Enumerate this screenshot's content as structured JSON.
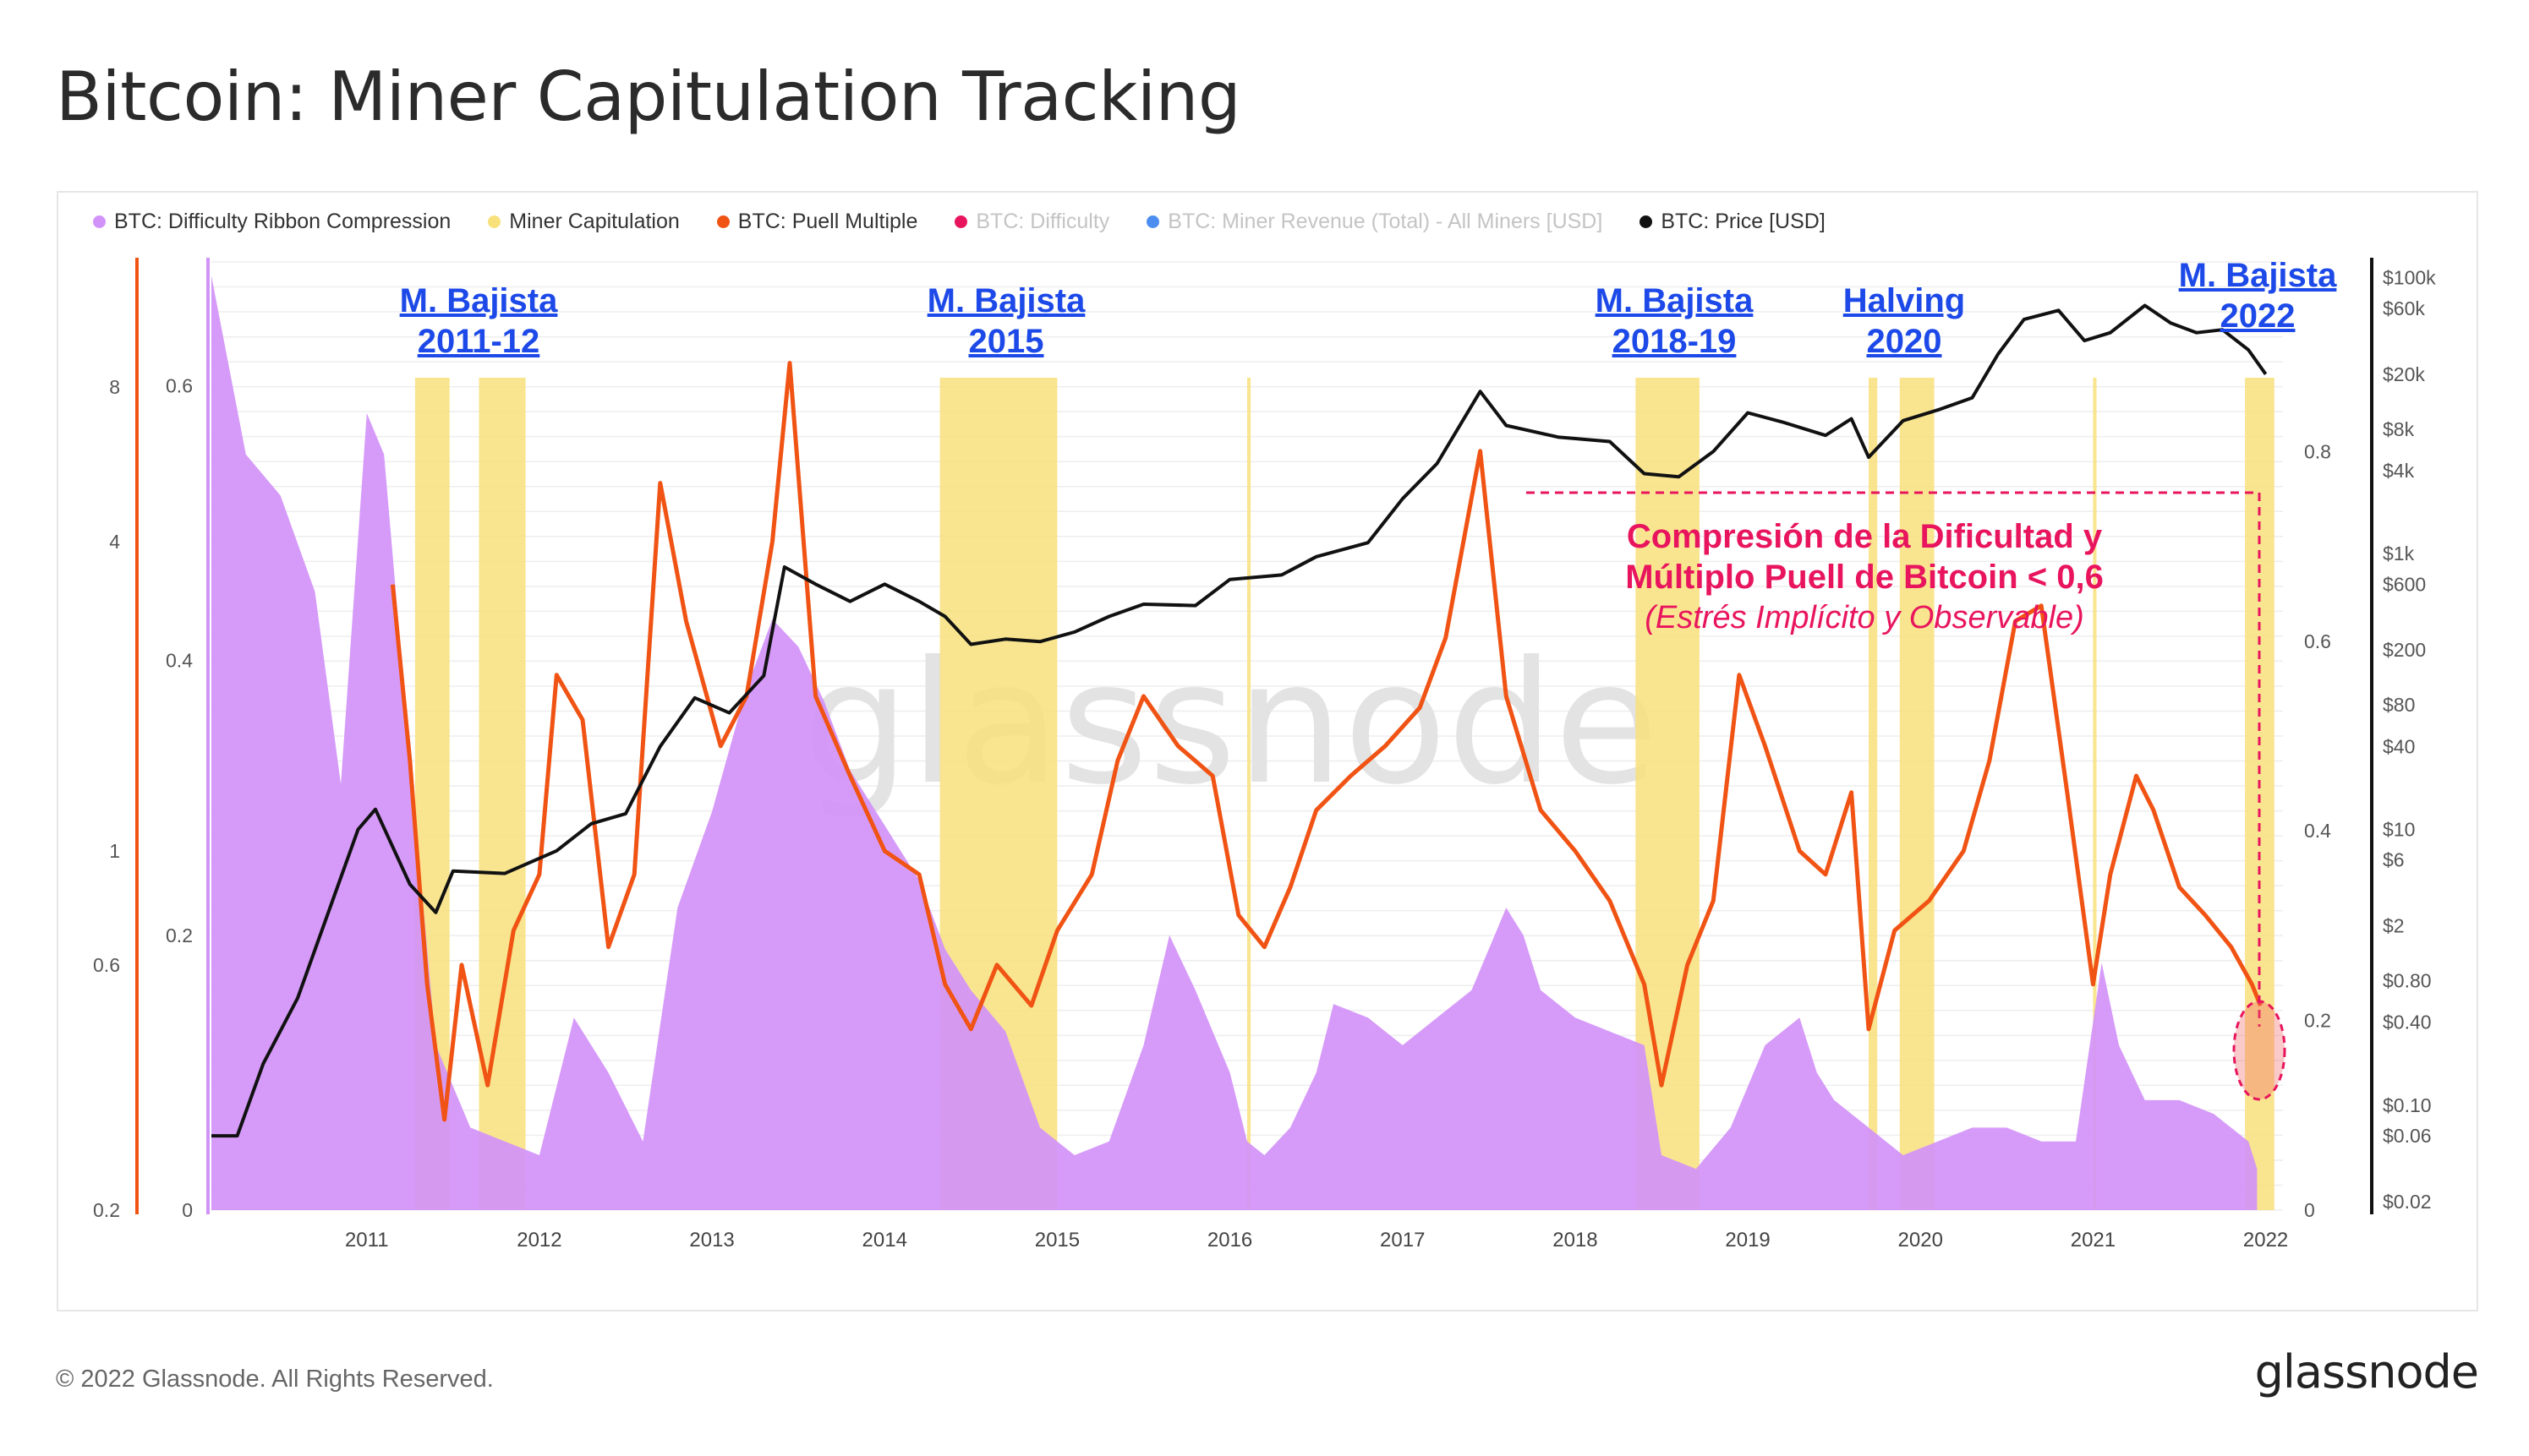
{
  "page": {
    "title": "Bitcoin: Miner Capitulation Tracking"
  },
  "legend": [
    {
      "label": "BTC: Difficulty Ribbon Compression",
      "color": "#d293f9",
      "muted": false
    },
    {
      "label": "Miner Capitulation",
      "color": "#f8e17b",
      "muted": false
    },
    {
      "label": "BTC: Puell Multiple",
      "color": "#f05313",
      "muted": false
    },
    {
      "label": "BTC: Difficulty",
      "color": "#e8155e",
      "muted": true
    },
    {
      "label": "BTC: Miner Revenue (Total) - All Miners [USD]",
      "color": "#4c8ef0",
      "muted": true
    },
    {
      "label": "BTC: Price [USD]",
      "color": "#111111",
      "muted": false
    }
  ],
  "footer": {
    "copyright": "© 2022 Glassnode. All Rights Reserved.",
    "brand": "glassnode"
  },
  "chart_data": {
    "type": "line",
    "title": "Bitcoin: Miner Capitulation Tracking",
    "watermark": "glassnode",
    "x_axis": {
      "ticks": [
        "2011",
        "2012",
        "2013",
        "2014",
        "2015",
        "2016",
        "2017",
        "2018",
        "2019",
        "2020",
        "2021",
        "2022"
      ],
      "range": [
        2010.6,
        2022.6
      ]
    },
    "axes": {
      "puell_multiple_log": {
        "ticks": [
          "0.2",
          "0.6",
          "1",
          "4",
          "8"
        ],
        "values": [
          0.2,
          0.6,
          1,
          4,
          8
        ]
      },
      "difficulty_ribbon_compression": {
        "ticks": [
          "0",
          "0.2",
          "0.4",
          "0.6"
        ],
        "range": [
          0,
          0.69
        ]
      },
      "right_inner": {
        "ticks": [
          "0",
          "0.2",
          "0.4",
          "0.6",
          "0.8"
        ],
        "range": [
          0,
          1.0
        ]
      },
      "price_usd_log": {
        "ticks": [
          "$0.02",
          "$0.06",
          "$0.10",
          "$0.40",
          "$0.80",
          "$2",
          "$6",
          "$10",
          "$40",
          "$80",
          "$200",
          "$600",
          "$1k",
          "$4k",
          "$8k",
          "$20k",
          "$60k",
          "$100k"
        ],
        "values": [
          0.02,
          0.06,
          0.1,
          0.4,
          0.8,
          2,
          6,
          10,
          40,
          80,
          200,
          600,
          1000,
          4000,
          8000,
          20000,
          60000,
          100000
        ]
      }
    },
    "series": [
      {
        "name": "BTC: Difficulty Ribbon Compression",
        "type": "area",
        "color": "#d293f9",
        "points": [
          [
            2010.6,
            0.68
          ],
          [
            2010.8,
            0.55
          ],
          [
            2011.0,
            0.52
          ],
          [
            2011.2,
            0.45
          ],
          [
            2011.35,
            0.31
          ],
          [
            2011.5,
            0.58
          ],
          [
            2011.6,
            0.55
          ],
          [
            2011.75,
            0.33
          ],
          [
            2011.9,
            0.12
          ],
          [
            2012.1,
            0.06
          ],
          [
            2012.3,
            0.05
          ],
          [
            2012.5,
            0.04
          ],
          [
            2012.7,
            0.14
          ],
          [
            2012.9,
            0.1
          ],
          [
            2013.1,
            0.05
          ],
          [
            2013.3,
            0.22
          ],
          [
            2013.5,
            0.29
          ],
          [
            2013.7,
            0.38
          ],
          [
            2013.85,
            0.43
          ],
          [
            2014.0,
            0.41
          ],
          [
            2014.15,
            0.37
          ],
          [
            2014.3,
            0.32
          ],
          [
            2014.5,
            0.28
          ],
          [
            2014.7,
            0.24
          ],
          [
            2014.85,
            0.19
          ],
          [
            2015.0,
            0.16
          ],
          [
            2015.2,
            0.13
          ],
          [
            2015.4,
            0.06
          ],
          [
            2015.6,
            0.04
          ],
          [
            2015.8,
            0.05
          ],
          [
            2016.0,
            0.12
          ],
          [
            2016.15,
            0.2
          ],
          [
            2016.3,
            0.16
          ],
          [
            2016.5,
            0.1
          ],
          [
            2016.6,
            0.05
          ],
          [
            2016.7,
            0.04
          ],
          [
            2016.85,
            0.06
          ],
          [
            2017.0,
            0.1
          ],
          [
            2017.1,
            0.15
          ],
          [
            2017.3,
            0.14
          ],
          [
            2017.5,
            0.12
          ],
          [
            2017.7,
            0.14
          ],
          [
            2017.9,
            0.16
          ],
          [
            2018.1,
            0.22
          ],
          [
            2018.2,
            0.2
          ],
          [
            2018.3,
            0.16
          ],
          [
            2018.5,
            0.14
          ],
          [
            2018.7,
            0.13
          ],
          [
            2018.9,
            0.12
          ],
          [
            2019.0,
            0.04
          ],
          [
            2019.2,
            0.03
          ],
          [
            2019.4,
            0.06
          ],
          [
            2019.6,
            0.12
          ],
          [
            2019.8,
            0.14
          ],
          [
            2019.9,
            0.1
          ],
          [
            2020.0,
            0.08
          ],
          [
            2020.2,
            0.06
          ],
          [
            2020.4,
            0.04
          ],
          [
            2020.6,
            0.05
          ],
          [
            2020.8,
            0.06
          ],
          [
            2021.0,
            0.06
          ],
          [
            2021.2,
            0.05
          ],
          [
            2021.4,
            0.05
          ],
          [
            2021.55,
            0.18
          ],
          [
            2021.65,
            0.12
          ],
          [
            2021.8,
            0.08
          ],
          [
            2022.0,
            0.08
          ],
          [
            2022.2,
            0.07
          ],
          [
            2022.4,
            0.05
          ],
          [
            2022.45,
            0.03
          ]
        ]
      },
      {
        "name": "BTC: Puell Multiple",
        "type": "line",
        "color": "#f05313",
        "points": [
          [
            2011.65,
            3.3
          ],
          [
            2011.75,
            1.5
          ],
          [
            2011.85,
            0.55
          ],
          [
            2011.95,
            0.3
          ],
          [
            2012.05,
            0.6
          ],
          [
            2012.2,
            0.35
          ],
          [
            2012.35,
            0.7
          ],
          [
            2012.5,
            0.9
          ],
          [
            2012.6,
            2.2
          ],
          [
            2012.75,
            1.8
          ],
          [
            2012.9,
            0.65
          ],
          [
            2013.05,
            0.9
          ],
          [
            2013.2,
            5.2
          ],
          [
            2013.35,
            2.8
          ],
          [
            2013.55,
            1.6
          ],
          [
            2013.7,
            2.0
          ],
          [
            2013.85,
            4.0
          ],
          [
            2013.95,
            8.9
          ],
          [
            2014.1,
            2.0
          ],
          [
            2014.3,
            1.4
          ],
          [
            2014.5,
            1.0
          ],
          [
            2014.7,
            0.9
          ],
          [
            2014.85,
            0.55
          ],
          [
            2015.0,
            0.45
          ],
          [
            2015.15,
            0.6
          ],
          [
            2015.35,
            0.5
          ],
          [
            2015.5,
            0.7
          ],
          [
            2015.7,
            0.9
          ],
          [
            2015.85,
            1.5
          ],
          [
            2016.0,
            2.0
          ],
          [
            2016.2,
            1.6
          ],
          [
            2016.4,
            1.4
          ],
          [
            2016.55,
            0.75
          ],
          [
            2016.7,
            0.65
          ],
          [
            2016.85,
            0.85
          ],
          [
            2017.0,
            1.2
          ],
          [
            2017.2,
            1.4
          ],
          [
            2017.4,
            1.6
          ],
          [
            2017.6,
            1.9
          ],
          [
            2017.75,
            2.6
          ],
          [
            2017.95,
            6.0
          ],
          [
            2018.1,
            2.0
          ],
          [
            2018.3,
            1.2
          ],
          [
            2018.5,
            1.0
          ],
          [
            2018.7,
            0.8
          ],
          [
            2018.9,
            0.55
          ],
          [
            2019.0,
            0.35
          ],
          [
            2019.15,
            0.6
          ],
          [
            2019.3,
            0.8
          ],
          [
            2019.45,
            2.2
          ],
          [
            2019.6,
            1.6
          ],
          [
            2019.8,
            1.0
          ],
          [
            2019.95,
            0.9
          ],
          [
            2020.1,
            1.3
          ],
          [
            2020.2,
            0.45
          ],
          [
            2020.35,
            0.7
          ],
          [
            2020.55,
            0.8
          ],
          [
            2020.75,
            1.0
          ],
          [
            2020.9,
            1.5
          ],
          [
            2021.05,
            2.8
          ],
          [
            2021.2,
            3.0
          ],
          [
            2021.35,
            1.3
          ],
          [
            2021.5,
            0.55
          ],
          [
            2021.6,
            0.9
          ],
          [
            2021.75,
            1.4
          ],
          [
            2021.85,
            1.2
          ],
          [
            2022.0,
            0.85
          ],
          [
            2022.15,
            0.75
          ],
          [
            2022.3,
            0.65
          ],
          [
            2022.42,
            0.55
          ],
          [
            2022.47,
            0.5
          ]
        ]
      },
      {
        "name": "BTC: Price [USD]",
        "type": "line",
        "color": "#111111",
        "points": [
          [
            2010.6,
            0.06
          ],
          [
            2010.75,
            0.06
          ],
          [
            2010.9,
            0.2
          ],
          [
            2011.1,
            0.6
          ],
          [
            2011.3,
            3.0
          ],
          [
            2011.45,
            10
          ],
          [
            2011.55,
            14
          ],
          [
            2011.75,
            4
          ],
          [
            2011.9,
            2.5
          ],
          [
            2012.0,
            5
          ],
          [
            2012.3,
            4.8
          ],
          [
            2012.6,
            7
          ],
          [
            2012.8,
            11
          ],
          [
            2013.0,
            13
          ],
          [
            2013.2,
            40
          ],
          [
            2013.4,
            90
          ],
          [
            2013.6,
            70
          ],
          [
            2013.8,
            130
          ],
          [
            2013.92,
            800
          ],
          [
            2014.1,
            600
          ],
          [
            2014.3,
            450
          ],
          [
            2014.5,
            600
          ],
          [
            2014.7,
            450
          ],
          [
            2014.85,
            350
          ],
          [
            2015.0,
            220
          ],
          [
            2015.2,
            240
          ],
          [
            2015.4,
            230
          ],
          [
            2015.6,
            270
          ],
          [
            2015.8,
            350
          ],
          [
            2016.0,
            430
          ],
          [
            2016.3,
            420
          ],
          [
            2016.5,
            650
          ],
          [
            2016.8,
            700
          ],
          [
            2017.0,
            950
          ],
          [
            2017.3,
            1200
          ],
          [
            2017.5,
            2500
          ],
          [
            2017.7,
            4500
          ],
          [
            2017.95,
            15000
          ],
          [
            2018.1,
            8500
          ],
          [
            2018.4,
            7000
          ],
          [
            2018.7,
            6500
          ],
          [
            2018.9,
            3800
          ],
          [
            2019.1,
            3600
          ],
          [
            2019.3,
            5500
          ],
          [
            2019.5,
            10500
          ],
          [
            2019.7,
            9000
          ],
          [
            2019.95,
            7200
          ],
          [
            2020.1,
            9500
          ],
          [
            2020.2,
            5000
          ],
          [
            2020.4,
            9200
          ],
          [
            2020.6,
            11000
          ],
          [
            2020.8,
            13500
          ],
          [
            2020.95,
            28000
          ],
          [
            2021.1,
            50000
          ],
          [
            2021.3,
            58000
          ],
          [
            2021.45,
            35000
          ],
          [
            2021.6,
            40000
          ],
          [
            2021.8,
            63000
          ],
          [
            2021.95,
            47000
          ],
          [
            2022.1,
            40000
          ],
          [
            2022.25,
            42000
          ],
          [
            2022.4,
            30000
          ],
          [
            2022.5,
            20000
          ]
        ]
      }
    ],
    "miner_capitulation_bands": [
      [
        2011.78,
        2011.98
      ],
      [
        2012.15,
        2012.42
      ],
      [
        2014.82,
        2015.5
      ],
      [
        2016.6,
        2016.62
      ],
      [
        2018.85,
        2019.22
      ],
      [
        2020.2,
        2020.25
      ],
      [
        2020.38,
        2020.58
      ],
      [
        2021.5,
        2021.52
      ],
      [
        2022.38,
        2022.55
      ]
    ],
    "annotations": [
      {
        "label": "M. Bajista",
        "sub": "2011-12",
        "color": "#1c49e8"
      },
      {
        "label": "M. Bajista",
        "sub": "2015",
        "color": "#1c49e8"
      },
      {
        "label": "M. Bajista",
        "sub": "2018-19",
        "color": "#1c49e8"
      },
      {
        "label": "Halving",
        "sub": "2020",
        "color": "#1c49e8"
      },
      {
        "label": "M. Bajista",
        "sub": "2022",
        "color": "#1c49e8"
      }
    ],
    "callout": {
      "line1": "Compresión de la Dificultad y",
      "line2": "Múltiplo Puell de Bitcoin < 0,6",
      "line3": "(Estrés Implícito y Observable)",
      "color": "#e8155e"
    }
  }
}
